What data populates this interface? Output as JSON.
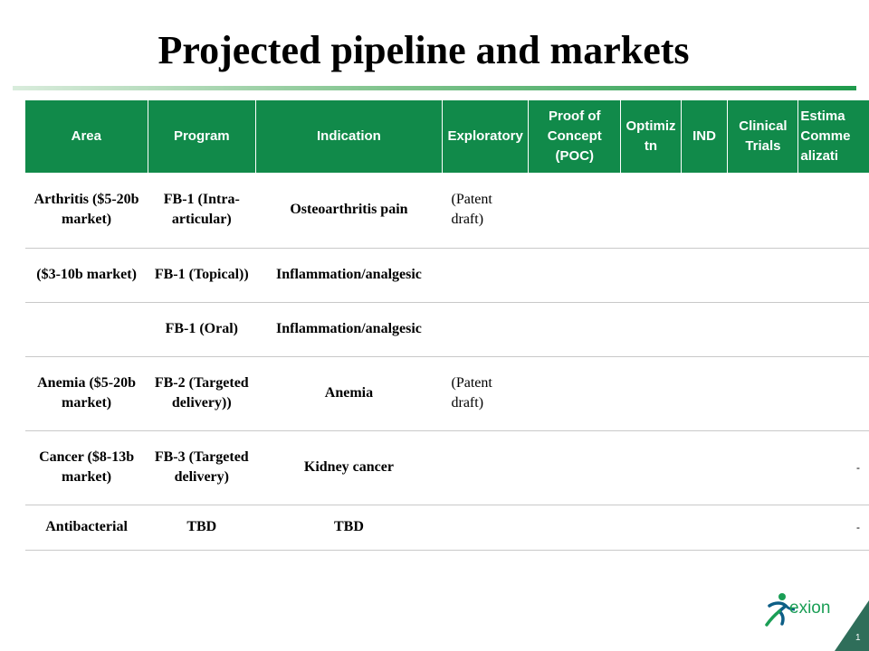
{
  "slide": {
    "title": "Projected pipeline and markets",
    "page_number": "1",
    "logo_text": "exion"
  },
  "colors": {
    "header_bg": "#118a4a",
    "logo": "#1a9e55",
    "corner": "#2f6e5a"
  },
  "table": {
    "headers": [
      "Area",
      "Program",
      "Indication",
      "Exploratory",
      "Proof of Concept (POC)",
      "Optimiz tn",
      "IND",
      "Clinical Trials",
      "Estima Comme alizati"
    ],
    "rows": [
      {
        "area": "Arthritis ($5-20b market)",
        "program": "FB-1 (Intra-articular)",
        "indication": "Osteoarthritis pain",
        "exploratory": "(Patent draft)",
        "last": ""
      },
      {
        "area": "($3-10b market)",
        "program": "FB-1 (Topical))",
        "indication": "Inflammation/analgesic",
        "exploratory": "",
        "last": ""
      },
      {
        "area": "",
        "program": "FB-1 (Oral)",
        "indication": "Inflammation/analgesic",
        "exploratory": "",
        "last": ""
      },
      {
        "area": "Anemia ($5-20b market)",
        "program": "FB-2 (Targeted delivery))",
        "indication": "Anemia",
        "exploratory": "(Patent draft)",
        "last": ""
      },
      {
        "area": "Cancer ($8-13b market)",
        "program": "FB-3 (Targeted delivery)",
        "indication": "Kidney cancer",
        "exploratory": "",
        "last": "-"
      },
      {
        "area": "Antibacterial",
        "program": "TBD",
        "indication": "TBD",
        "exploratory": "",
        "last": "-"
      }
    ]
  }
}
